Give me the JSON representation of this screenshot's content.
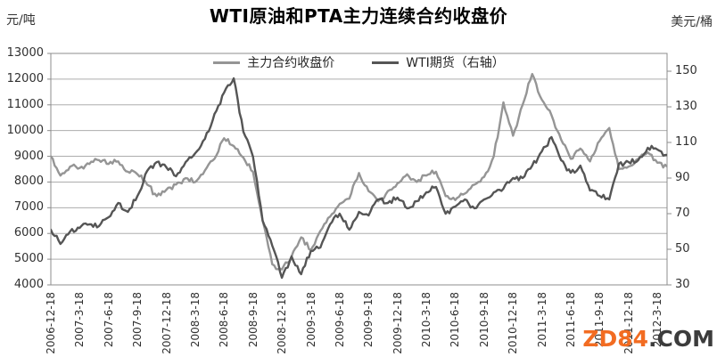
{
  "chart_data": {
    "type": "line",
    "title": "WTI原油和PTA主力连续合约收盘价",
    "grid": "horizontal",
    "legend_position": "top-center",
    "left_axis": {
      "unit": "元/吨",
      "min": 4000,
      "max": 13000,
      "tick_step": 1000,
      "ticks": [
        13000,
        12000,
        11000,
        10000,
        9000,
        8000,
        7000,
        6000,
        5000,
        4000
      ]
    },
    "right_axis": {
      "unit": "美元/桶",
      "min": 30,
      "max": 160,
      "tick_step": 20,
      "ticks": [
        150,
        130,
        110,
        90,
        70,
        50,
        30
      ]
    },
    "x_axis": {
      "tick_labels": [
        "2006-12-18",
        "2007-3-18",
        "2007-6-18",
        "2007-9-18",
        "2007-12-18",
        "2008-3-18",
        "2008-6-18",
        "2008-9-18",
        "2008-12-18",
        "2009-3-18",
        "2009-6-18",
        "2009-9-18",
        "2009-12-18",
        "2010-3-18",
        "2010-6-18",
        "2010-9-18",
        "2010-12-18",
        "2011-3-18",
        "2011-6-18",
        "2011-9-18",
        "2011-12-18",
        "2012-3-18"
      ],
      "data_start": "2006-12",
      "data_end": "2012-04",
      "data_interval": "monthly"
    },
    "series": [
      {
        "name": "主力合约收盘价",
        "axis": "left",
        "color": "#959595",
        "values": [
          9000,
          8250,
          8600,
          8550,
          8700,
          8850,
          8700,
          8800,
          8400,
          8300,
          7900,
          7450,
          7700,
          7900,
          8150,
          8000,
          8450,
          8900,
          9700,
          9400,
          8950,
          8400,
          6500,
          4800,
          4600,
          5100,
          5850,
          5350,
          6100,
          6650,
          7150,
          7350,
          8350,
          7650,
          7250,
          7650,
          7950,
          8300,
          8000,
          8250,
          8400,
          7450,
          7300,
          7550,
          7900,
          8200,
          9000,
          11100,
          9800,
          11000,
          12200,
          11200,
          10600,
          9650,
          8900,
          9300,
          8800,
          9600,
          10100,
          8500,
          8600,
          8900,
          9150,
          8750,
          8600
        ]
      },
      {
        "name": "WTI期货（右轴）",
        "axis": "right",
        "color": "#555555",
        "values": [
          61,
          53,
          60,
          62,
          64,
          63,
          68,
          76,
          71,
          80,
          94,
          99,
          96,
          91,
          99,
          104,
          112,
          126,
          138,
          146,
          116,
          102,
          66,
          52,
          34,
          46,
          36,
          49,
          51,
          64,
          70,
          61,
          71,
          69,
          78,
          76,
          79,
          73,
          77,
          82,
          85,
          70,
          74,
          78,
          73,
          78,
          82,
          84,
          90,
          90,
          97,
          105,
          113,
          100,
          93,
          97,
          83,
          80,
          78,
          98,
          99,
          100,
          107,
          106,
          103
        ]
      }
    ],
    "watermark": {
      "primary": "ZD84",
      "primary_color": "#F26C22",
      "secondary": ".COM",
      "secondary_color": "#3C3C3C"
    }
  }
}
